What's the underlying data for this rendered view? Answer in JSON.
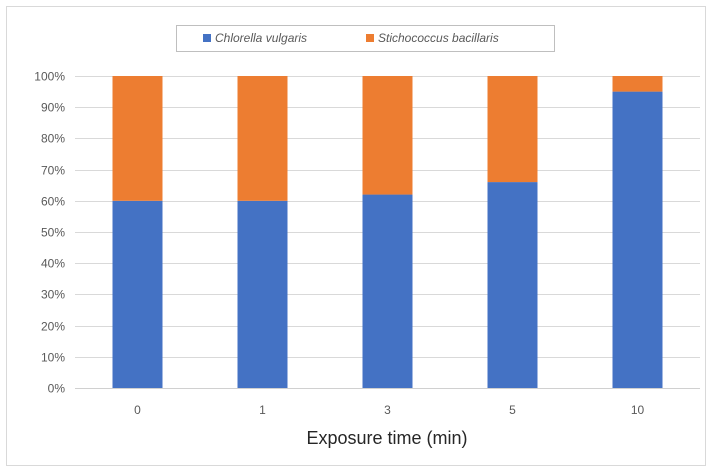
{
  "chart_data": {
    "type": "bar",
    "stacked": true,
    "percent_stacked": true,
    "categories": [
      "0",
      "1",
      "3",
      "5",
      "10"
    ],
    "series": [
      {
        "name": "Chlorella vulgaris",
        "values": [
          60,
          60,
          62,
          66,
          95
        ],
        "color": "#4472C4"
      },
      {
        "name": "Stichococcus bacillaris",
        "values": [
          40,
          40,
          38,
          34,
          5
        ],
        "color": "#ED7D31"
      }
    ],
    "xlabel": "Exposure time (min)",
    "ylabel": "",
    "ylim": [
      0,
      100
    ],
    "yticks": [
      "0%",
      "10%",
      "20%",
      "30%",
      "40%",
      "50%",
      "60%",
      "70%",
      "80%",
      "90%",
      "100%"
    ],
    "grid": true,
    "legend_position": "top"
  }
}
